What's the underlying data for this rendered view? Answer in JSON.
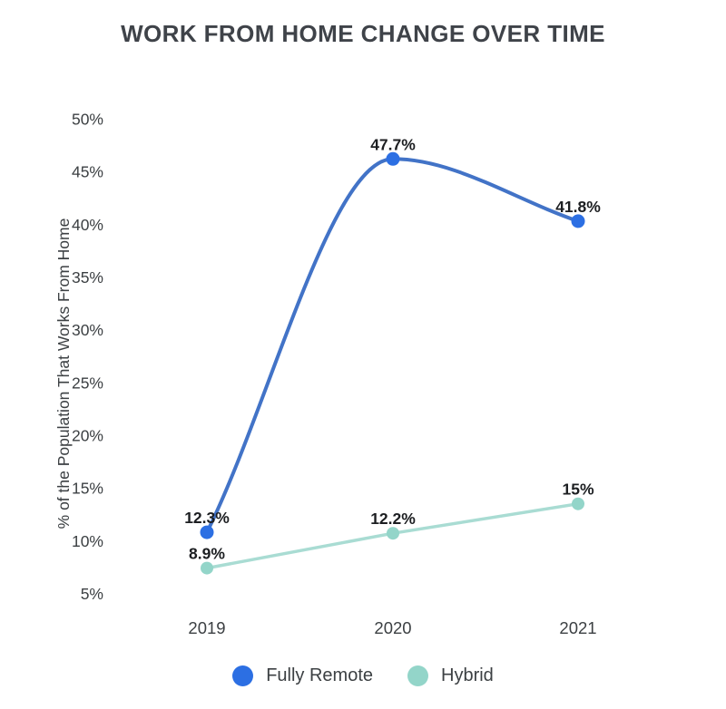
{
  "chart_data": {
    "type": "line",
    "title": "WORK FROM HOME CHANGE OVER TIME",
    "categories": [
      "2019",
      "2020",
      "2021"
    ],
    "series": [
      {
        "name": "Fully Remote",
        "values": [
          12.3,
          47.7,
          41.8
        ],
        "point_labels": [
          "12.3%",
          "47.7%",
          "41.8%"
        ],
        "point_color": "#2C6FE3",
        "line_color": "#4273C7",
        "smooth": true
      },
      {
        "name": "Hybrid",
        "values": [
          8.9,
          12.2,
          15
        ],
        "point_labels": [
          "8.9%",
          "12.2%",
          "15%"
        ],
        "point_color": "#93D5C9",
        "line_color": "#A9DCD3",
        "smooth": false
      }
    ],
    "xlabel": "",
    "ylabel": "% of the Population That Works From Home",
    "ylim": [
      5,
      50
    ],
    "tick_values": [
      5,
      10,
      15,
      20,
      25,
      30,
      35,
      40,
      45,
      50
    ],
    "y_ticks": [
      "5%",
      "10%",
      "15%",
      "20%",
      "25%",
      "30%",
      "35%",
      "40%",
      "45%",
      "50%"
    ],
    "grid": false,
    "legend_position": "bottom"
  },
  "colors": {
    "background": "#FFFFFF",
    "title_text": "#3F4349",
    "axis_text": "#3C4043",
    "data_label_text": "#1C1E21"
  }
}
